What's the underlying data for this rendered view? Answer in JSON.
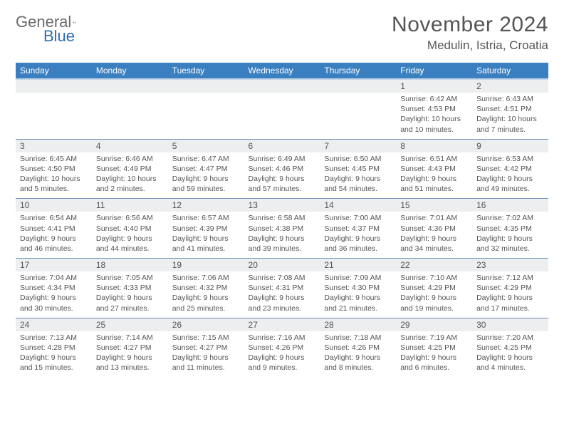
{
  "logo": {
    "word1": "General",
    "word2": "Blue"
  },
  "title": {
    "month": "November 2024",
    "location": "Medulin, Istria, Croatia"
  },
  "colors": {
    "header_bg": "#3a7fc0",
    "header_fg": "#ffffff",
    "daynum_bg": "#edeeef",
    "text": "#555555",
    "rule": "#6f91b4",
    "logo_gray": "#6a6a6a",
    "logo_blue": "#2d6fb3"
  },
  "typography": {
    "title_fontsize": 30,
    "location_fontsize": 17,
    "dayhead_fontsize": 12,
    "daynum_fontsize": 12,
    "detail_fontsize": 10.5
  },
  "day_headers": [
    "Sunday",
    "Monday",
    "Tuesday",
    "Wednesday",
    "Thursday",
    "Friday",
    "Saturday"
  ],
  "weeks": [
    [
      null,
      null,
      null,
      null,
      null,
      {
        "n": "1",
        "sr": "6:42 AM",
        "ss": "4:53 PM",
        "dl": "10 hours and 10 minutes."
      },
      {
        "n": "2",
        "sr": "6:43 AM",
        "ss": "4:51 PM",
        "dl": "10 hours and 7 minutes."
      }
    ],
    [
      {
        "n": "3",
        "sr": "6:45 AM",
        "ss": "4:50 PM",
        "dl": "10 hours and 5 minutes."
      },
      {
        "n": "4",
        "sr": "6:46 AM",
        "ss": "4:49 PM",
        "dl": "10 hours and 2 minutes."
      },
      {
        "n": "5",
        "sr": "6:47 AM",
        "ss": "4:47 PM",
        "dl": "9 hours and 59 minutes."
      },
      {
        "n": "6",
        "sr": "6:49 AM",
        "ss": "4:46 PM",
        "dl": "9 hours and 57 minutes."
      },
      {
        "n": "7",
        "sr": "6:50 AM",
        "ss": "4:45 PM",
        "dl": "9 hours and 54 minutes."
      },
      {
        "n": "8",
        "sr": "6:51 AM",
        "ss": "4:43 PM",
        "dl": "9 hours and 51 minutes."
      },
      {
        "n": "9",
        "sr": "6:53 AM",
        "ss": "4:42 PM",
        "dl": "9 hours and 49 minutes."
      }
    ],
    [
      {
        "n": "10",
        "sr": "6:54 AM",
        "ss": "4:41 PM",
        "dl": "9 hours and 46 minutes."
      },
      {
        "n": "11",
        "sr": "6:56 AM",
        "ss": "4:40 PM",
        "dl": "9 hours and 44 minutes."
      },
      {
        "n": "12",
        "sr": "6:57 AM",
        "ss": "4:39 PM",
        "dl": "9 hours and 41 minutes."
      },
      {
        "n": "13",
        "sr": "6:58 AM",
        "ss": "4:38 PM",
        "dl": "9 hours and 39 minutes."
      },
      {
        "n": "14",
        "sr": "7:00 AM",
        "ss": "4:37 PM",
        "dl": "9 hours and 36 minutes."
      },
      {
        "n": "15",
        "sr": "7:01 AM",
        "ss": "4:36 PM",
        "dl": "9 hours and 34 minutes."
      },
      {
        "n": "16",
        "sr": "7:02 AM",
        "ss": "4:35 PM",
        "dl": "9 hours and 32 minutes."
      }
    ],
    [
      {
        "n": "17",
        "sr": "7:04 AM",
        "ss": "4:34 PM",
        "dl": "9 hours and 30 minutes."
      },
      {
        "n": "18",
        "sr": "7:05 AM",
        "ss": "4:33 PM",
        "dl": "9 hours and 27 minutes."
      },
      {
        "n": "19",
        "sr": "7:06 AM",
        "ss": "4:32 PM",
        "dl": "9 hours and 25 minutes."
      },
      {
        "n": "20",
        "sr": "7:08 AM",
        "ss": "4:31 PM",
        "dl": "9 hours and 23 minutes."
      },
      {
        "n": "21",
        "sr": "7:09 AM",
        "ss": "4:30 PM",
        "dl": "9 hours and 21 minutes."
      },
      {
        "n": "22",
        "sr": "7:10 AM",
        "ss": "4:29 PM",
        "dl": "9 hours and 19 minutes."
      },
      {
        "n": "23",
        "sr": "7:12 AM",
        "ss": "4:29 PM",
        "dl": "9 hours and 17 minutes."
      }
    ],
    [
      {
        "n": "24",
        "sr": "7:13 AM",
        "ss": "4:28 PM",
        "dl": "9 hours and 15 minutes."
      },
      {
        "n": "25",
        "sr": "7:14 AM",
        "ss": "4:27 PM",
        "dl": "9 hours and 13 minutes."
      },
      {
        "n": "26",
        "sr": "7:15 AM",
        "ss": "4:27 PM",
        "dl": "9 hours and 11 minutes."
      },
      {
        "n": "27",
        "sr": "7:16 AM",
        "ss": "4:26 PM",
        "dl": "9 hours and 9 minutes."
      },
      {
        "n": "28",
        "sr": "7:18 AM",
        "ss": "4:26 PM",
        "dl": "9 hours and 8 minutes."
      },
      {
        "n": "29",
        "sr": "7:19 AM",
        "ss": "4:25 PM",
        "dl": "9 hours and 6 minutes."
      },
      {
        "n": "30",
        "sr": "7:20 AM",
        "ss": "4:25 PM",
        "dl": "9 hours and 4 minutes."
      }
    ]
  ],
  "labels": {
    "sunrise": "Sunrise:",
    "sunset": "Sunset:",
    "daylight": "Daylight:"
  }
}
